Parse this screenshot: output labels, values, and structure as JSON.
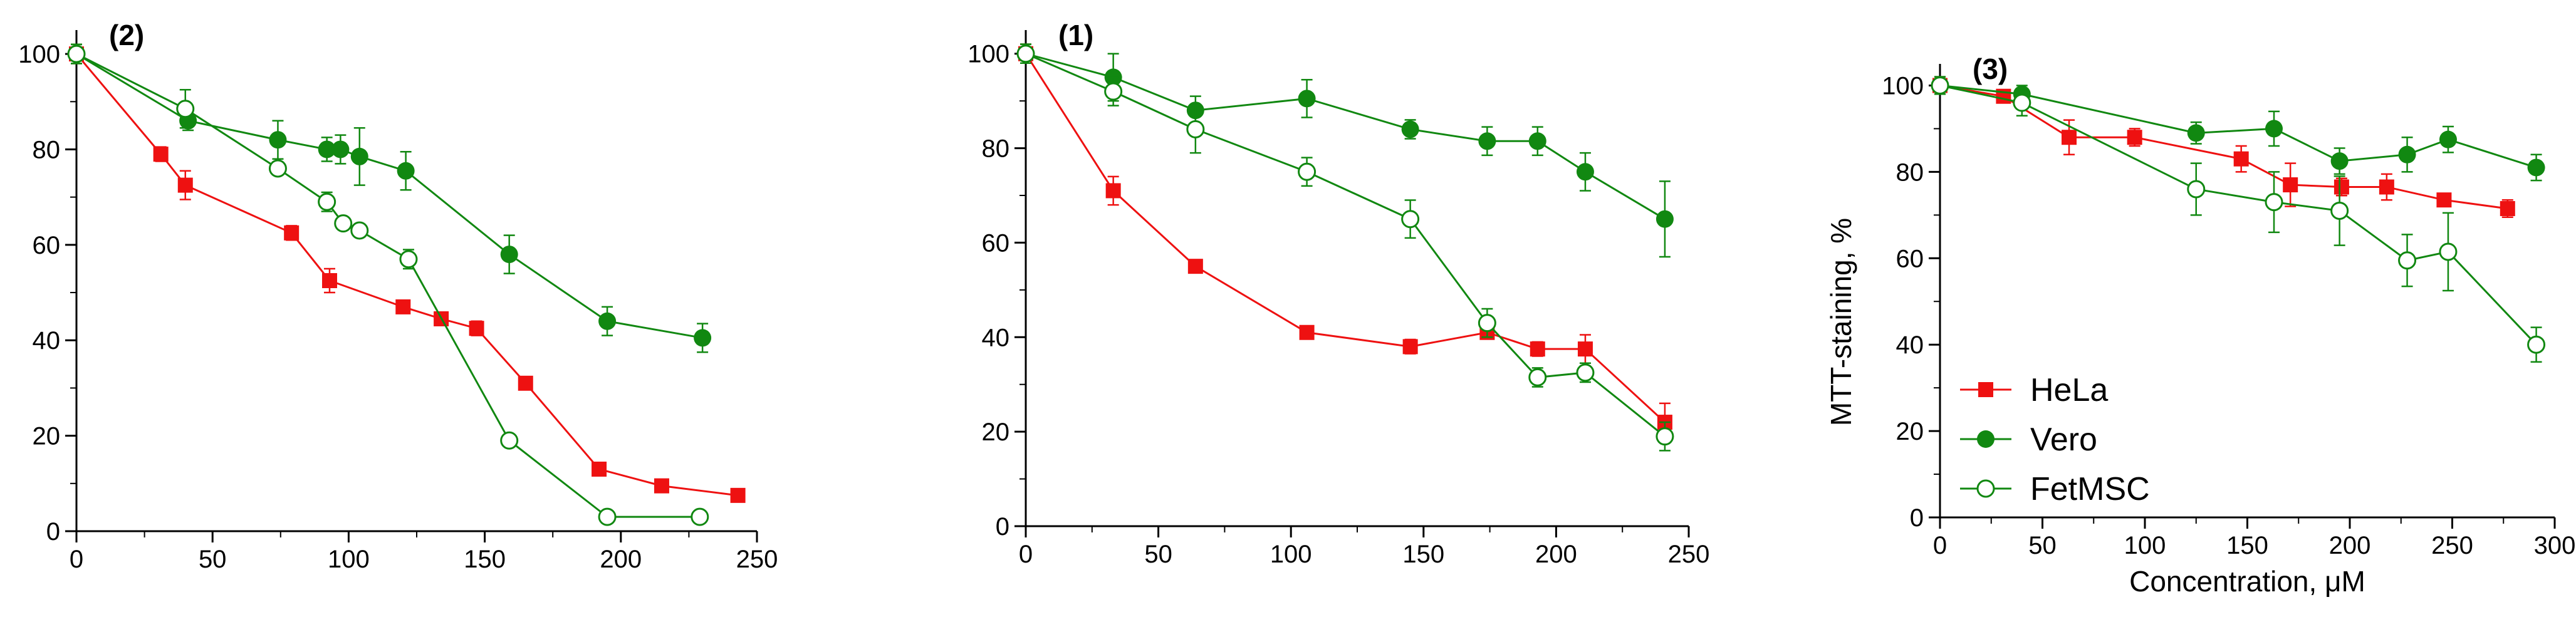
{
  "chart_data": [
    {
      "type": "line",
      "panel_label": "(2)",
      "xlim": [
        0,
        250
      ],
      "ylim": [
        0,
        105
      ],
      "xticks": [
        0,
        50,
        100,
        150,
        200,
        250
      ],
      "yticks": [
        0,
        20,
        40,
        60,
        80,
        100
      ],
      "xlabel": "",
      "ylabel": "",
      "series": [
        {
          "name": "HeLa",
          "x": [
            0,
            31,
            40,
            79,
            93,
            120,
            134,
            147,
            165,
            192,
            215,
            243
          ],
          "y": [
            100,
            79,
            72.5,
            62.5,
            52.5,
            47,
            44.5,
            42.5,
            31,
            13,
            9.5,
            7.5
          ],
          "err": [
            2,
            1.5,
            3,
            1.5,
            2.5,
            1,
            1,
            1.5,
            1,
            1,
            1,
            1
          ]
        },
        {
          "name": "Vero",
          "x": [
            0,
            41,
            74,
            92,
            97,
            104,
            121,
            159,
            195,
            230
          ],
          "y": [
            100,
            86,
            82,
            80,
            80,
            78.5,
            75.5,
            58,
            44,
            40.5
          ],
          "err": [
            2,
            2,
            4,
            2.5,
            3,
            6,
            4,
            4,
            3,
            3
          ]
        },
        {
          "name": "FetMSC",
          "x": [
            0,
            40,
            74,
            92,
            98,
            104,
            122,
            159,
            195,
            229
          ],
          "y": [
            100,
            88.5,
            76,
            69,
            64.5,
            63,
            57,
            19,
            3,
            3
          ],
          "err": [
            2,
            4,
            1,
            2,
            1,
            1,
            2,
            1,
            1,
            1
          ]
        }
      ]
    },
    {
      "type": "line",
      "panel_label": "(1)",
      "xlim": [
        0,
        250
      ],
      "ylim": [
        0,
        105
      ],
      "xticks": [
        0,
        50,
        100,
        150,
        200,
        250
      ],
      "yticks": [
        0,
        20,
        40,
        60,
        80,
        100
      ],
      "xlabel": "",
      "ylabel": "",
      "series": [
        {
          "name": "HeLa",
          "x": [
            0,
            33,
            64,
            106,
            145,
            174,
            193,
            211,
            241
          ],
          "y": [
            100,
            71,
            55,
            41,
            38,
            41,
            37.5,
            37.5,
            22
          ],
          "err": [
            2,
            3,
            1,
            1,
            1.5,
            1,
            1.5,
            3,
            4
          ]
        },
        {
          "name": "Vero",
          "x": [
            0,
            33,
            64,
            106,
            145,
            174,
            193,
            211,
            241
          ],
          "y": [
            100,
            95,
            88,
            90.5,
            84,
            81.5,
            81.5,
            75,
            65
          ],
          "err": [
            2,
            5,
            3,
            4,
            2,
            3,
            3,
            4,
            8
          ]
        },
        {
          "name": "FetMSC",
          "x": [
            0,
            33,
            64,
            106,
            145,
            174,
            193,
            211,
            241
          ],
          "y": [
            100,
            92,
            84,
            75,
            65,
            43,
            31.5,
            32.5,
            19
          ],
          "err": [
            2,
            3,
            5,
            3,
            4,
            3,
            2,
            2,
            3
          ]
        }
      ]
    },
    {
      "type": "line",
      "panel_label": "(3)",
      "xlim": [
        0,
        300
      ],
      "ylim": [
        0,
        105
      ],
      "xticks": [
        0,
        50,
        100,
        150,
        200,
        250,
        300
      ],
      "yticks": [
        0,
        20,
        40,
        60,
        80,
        100
      ],
      "xlabel": "Concentration, μM",
      "ylabel": "MTT-staining, %",
      "legend": [
        "HeLa",
        "Vero",
        "FetMSC"
      ],
      "legend_position": "bottom-left",
      "series": [
        {
          "name": "HeLa",
          "x": [
            0,
            31,
            63,
            95,
            147,
            171,
            196,
            218,
            246,
            277
          ],
          "y": [
            100,
            97.5,
            88,
            88,
            83,
            77,
            76.5,
            76.5,
            73.5,
            71.5
          ],
          "err": [
            2,
            1.5,
            4,
            2,
            3,
            5,
            2,
            3,
            1.5,
            2
          ]
        },
        {
          "name": "Vero",
          "x": [
            0,
            40,
            125,
            163,
            195,
            228,
            248,
            291
          ],
          "y": [
            100,
            98,
            89,
            90,
            82.5,
            84,
            87.5,
            81
          ],
          "err": [
            2,
            2,
            2.5,
            4,
            3,
            4,
            3,
            3
          ]
        },
        {
          "name": "FetMSC",
          "x": [
            0,
            40,
            125,
            163,
            195,
            228,
            248,
            291
          ],
          "y": [
            100,
            96,
            76,
            73,
            71,
            59.5,
            61.5,
            40
          ],
          "err": [
            2,
            3,
            6,
            7,
            8,
            6,
            9,
            4
          ]
        }
      ]
    }
  ],
  "style": {
    "hela_color": "#ee1111",
    "vero_color": "#118811",
    "fetmsc_color": "#118811"
  }
}
